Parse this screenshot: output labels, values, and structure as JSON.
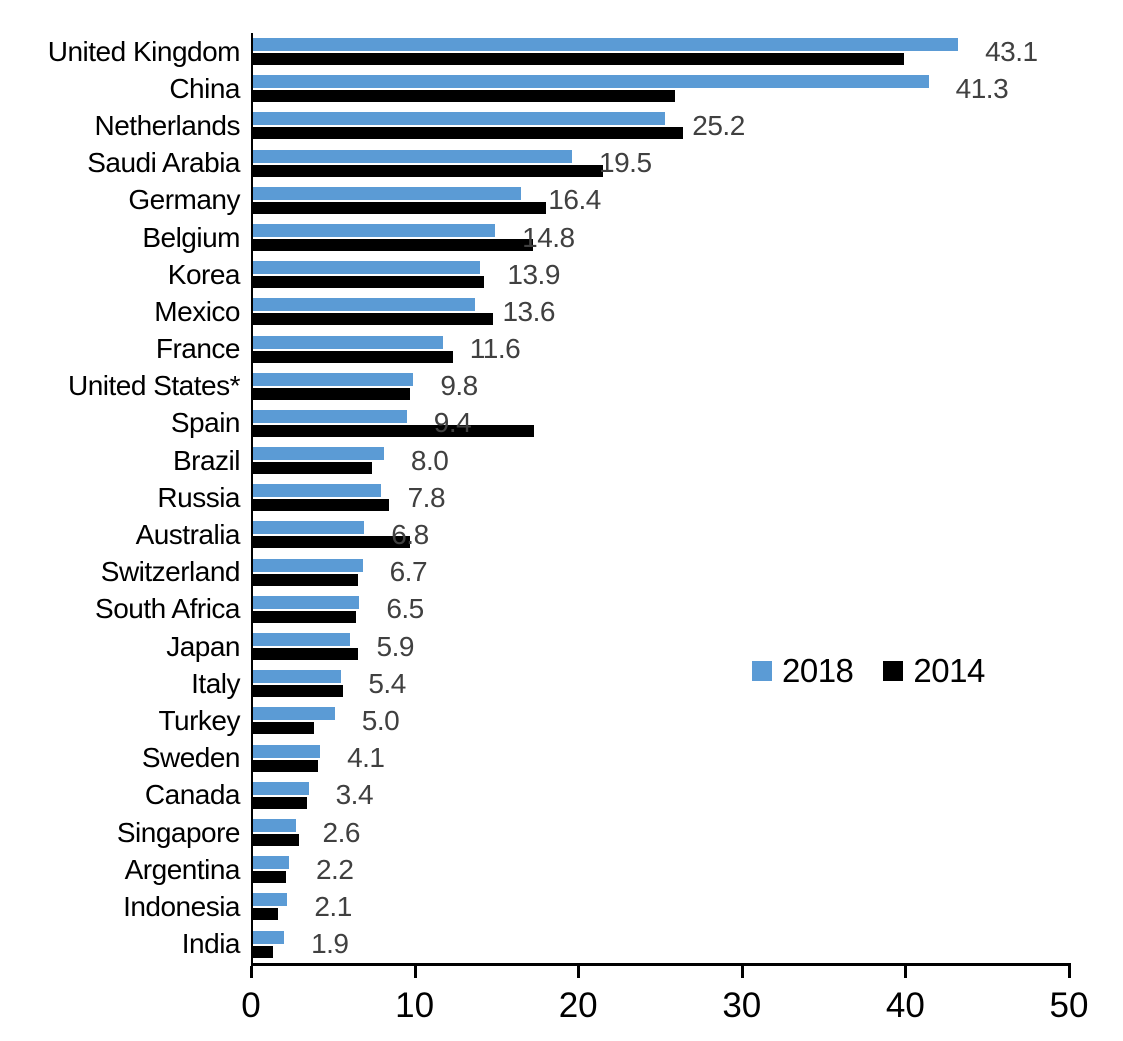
{
  "chart_data": {
    "type": "bar",
    "orientation": "horizontal",
    "title": "",
    "xlabel": "",
    "ylabel": "",
    "xlim": [
      0,
      50
    ],
    "x_ticks": [
      0,
      10,
      20,
      30,
      40,
      50
    ],
    "x_tick_labels": [
      "0",
      "10",
      "20",
      "30",
      "40",
      "50"
    ],
    "grid": false,
    "legend_position": "middle-right",
    "value_label_color": "#404040",
    "categories": [
      "United Kingdom",
      "China",
      "Netherlands",
      "Saudi Arabia",
      "Germany",
      "Belgium",
      "Korea",
      "Mexico",
      "France",
      "United States*",
      "Spain",
      "Brazil",
      "Russia",
      "Australia",
      "Switzerland",
      "South Africa",
      "Japan",
      "Italy",
      "Turkey",
      "Sweden",
      "Canada",
      "Singapore",
      "Argentina",
      "Indonesia",
      "India"
    ],
    "series": [
      {
        "name": "2018",
        "color": "#5B9BD5",
        "values": [
          43.1,
          41.3,
          25.2,
          19.5,
          16.4,
          14.8,
          13.9,
          13.6,
          11.6,
          9.8,
          9.4,
          8.0,
          7.8,
          6.8,
          6.7,
          6.5,
          5.9,
          5.4,
          5.0,
          4.1,
          3.4,
          2.6,
          2.2,
          2.1,
          1.9
        ],
        "data_labels": [
          "43.1",
          "41.3",
          "25.2",
          "19.5",
          "16.4",
          "14.8",
          "13.9",
          "13.6",
          "11.6",
          "9.8",
          "9.4",
          "8.0",
          "7.8",
          "6.8",
          "6.7",
          "6.5",
          "5.9",
          "5.4",
          "5.0",
          "4.1",
          "3.4",
          "2.6",
          "2.2",
          "2.1",
          "1.9"
        ]
      },
      {
        "name": "2014",
        "color": "#000000",
        "values": [
          39.8,
          25.8,
          26.3,
          21.4,
          17.9,
          17.1,
          14.1,
          14.7,
          12.2,
          9.6,
          17.2,
          7.3,
          8.3,
          9.6,
          6.4,
          6.3,
          6.4,
          5.5,
          3.7,
          4.0,
          3.3,
          2.8,
          2.0,
          1.5,
          1.2
        ]
      }
    ]
  }
}
